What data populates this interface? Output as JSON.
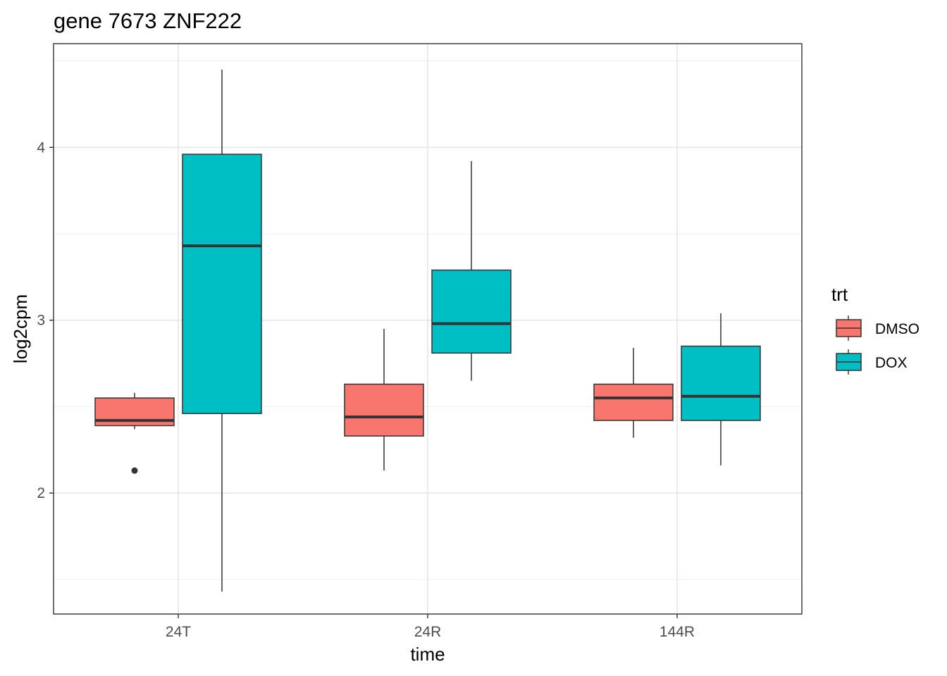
{
  "chart_data": {
    "type": "boxplot",
    "title": "gene 7673 ZNF222",
    "xlabel": "time",
    "ylabel": "log2cpm",
    "categories": [
      "24T",
      "24R",
      "144R"
    ],
    "ylim": [
      1.3,
      4.6
    ],
    "y_ticks": [
      2,
      3,
      4
    ],
    "y_tick_labels": [
      "2",
      "3",
      "4"
    ],
    "grid": true,
    "legend": {
      "title": "trt",
      "position": "right",
      "entries": [
        "DMSO",
        "DOX"
      ]
    },
    "series": [
      {
        "name": "DMSO",
        "color": "#F8766D",
        "boxes": [
          {
            "category": "24T",
            "whisker_low": 2.37,
            "q1": 2.39,
            "median": 2.42,
            "q3": 2.55,
            "whisker_high": 2.58,
            "outliers": [
              2.13
            ]
          },
          {
            "category": "24R",
            "whisker_low": 2.13,
            "q1": 2.33,
            "median": 2.44,
            "q3": 2.63,
            "whisker_high": 2.95,
            "outliers": []
          },
          {
            "category": "144R",
            "whisker_low": 2.32,
            "q1": 2.42,
            "median": 2.55,
            "q3": 2.63,
            "whisker_high": 2.84,
            "outliers": []
          }
        ]
      },
      {
        "name": "DOX",
        "color": "#00BFC4",
        "boxes": [
          {
            "category": "24T",
            "whisker_low": 1.43,
            "q1": 2.46,
            "median": 3.43,
            "q3": 3.96,
            "whisker_high": 4.45,
            "outliers": []
          },
          {
            "category": "24R",
            "whisker_low": 2.65,
            "q1": 2.81,
            "median": 2.98,
            "q3": 3.29,
            "whisker_high": 3.92,
            "outliers": []
          },
          {
            "category": "144R",
            "whisker_low": 2.16,
            "q1": 2.42,
            "median": 2.56,
            "q3": 2.85,
            "whisker_high": 3.04,
            "outliers": []
          }
        ]
      }
    ]
  }
}
